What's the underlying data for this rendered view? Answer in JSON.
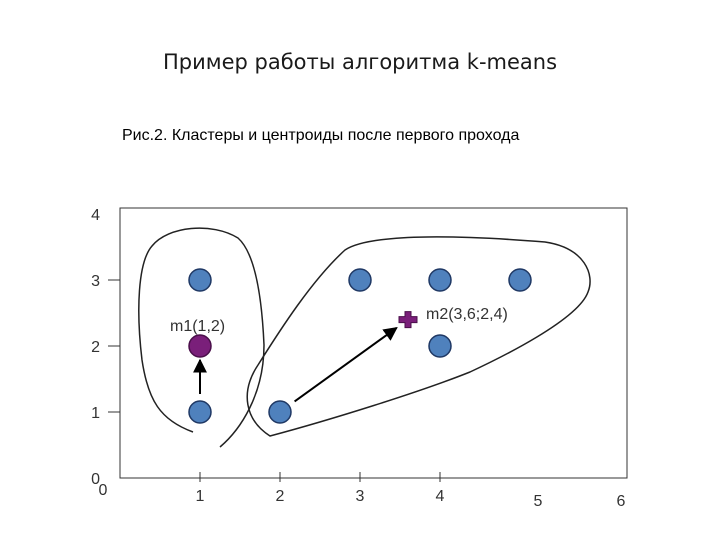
{
  "slide": {
    "title": "Пример работы алгоритма k-means",
    "caption": "Рис.2. Кластеры и центроиды после первого прохода"
  },
  "colors": {
    "point_fill": "#4f81bd",
    "point_stroke": "#1f3864",
    "centroid_fill": "#7a1f7a",
    "axis": "#333333"
  },
  "chart_data": {
    "type": "scatter",
    "title": "",
    "xlabel": "",
    "ylabel": "",
    "xlim": [
      0,
      6
    ],
    "ylim": [
      0,
      4
    ],
    "x_ticks": [
      "0",
      "1",
      "2",
      "3",
      "4",
      "5",
      "6"
    ],
    "y_ticks": [
      "0",
      "1",
      "2",
      "3",
      "4"
    ],
    "grid": false,
    "points": [
      {
        "x": 1,
        "y": 1
      },
      {
        "x": 1,
        "y": 3
      },
      {
        "x": 2,
        "y": 1
      },
      {
        "x": 3,
        "y": 3
      },
      {
        "x": 4,
        "y": 3
      },
      {
        "x": 4,
        "y": 2
      },
      {
        "x": 5,
        "y": 3
      }
    ],
    "centroids": [
      {
        "label": "m1(1,2)",
        "x": 1,
        "y": 2,
        "marker": "circle"
      },
      {
        "label": "m2(3,6;2,4)",
        "x": 3.6,
        "y": 2.4,
        "marker": "plus"
      }
    ],
    "arrows": [
      {
        "from": [
          1,
          1
        ],
        "to": [
          1,
          2
        ]
      },
      {
        "from": [
          2,
          1
        ],
        "to": [
          3.6,
          2.4
        ]
      }
    ],
    "clusters": 2
  }
}
